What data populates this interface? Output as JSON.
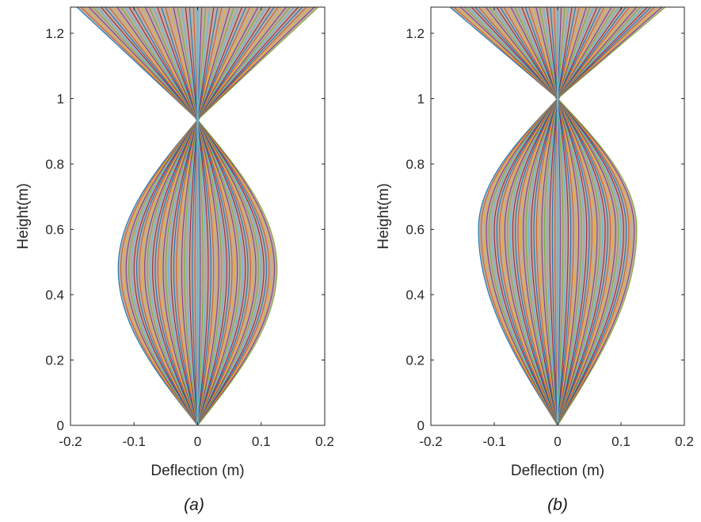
{
  "chart_data": [
    {
      "type": "line",
      "caption": "(a)",
      "xlabel": "Deflection (m)",
      "ylabel": "Height(m)",
      "xlim": [
        -0.2,
        0.2
      ],
      "ylim": [
        0,
        1.28
      ],
      "xticks": [
        "-0.2",
        "-0.1",
        "0",
        "0.1",
        "0.2"
      ],
      "yticks": [
        "0",
        "0.2",
        "0.4",
        "0.6",
        "0.8",
        "1",
        "1.2"
      ],
      "grid": false,
      "envelope": {
        "node_height": 0.935,
        "max_deflection_lower": 0.125,
        "max_deflection_lower_at_height": 0.48,
        "deflection_at_top": 0.19
      },
      "series_colors": [
        "#0072bd",
        "#d95319",
        "#edb120",
        "#7e2f8e",
        "#77ac30",
        "#4dbeee",
        "#a2142f"
      ],
      "num_mode_shape_lines": 60
    },
    {
      "type": "line",
      "caption": "(b)",
      "xlabel": "Deflection (m)",
      "ylabel": "Height(m)",
      "xlim": [
        -0.2,
        0.2
      ],
      "ylim": [
        0,
        1.28
      ],
      "xticks": [
        "-0.2",
        "-0.1",
        "0",
        "0.1",
        "0.2"
      ],
      "yticks": [
        "0",
        "0.2",
        "0.4",
        "0.6",
        "0.8",
        "1",
        "1.2"
      ],
      "grid": false,
      "envelope": {
        "node_height": 1.0,
        "max_deflection_lower": 0.125,
        "max_deflection_lower_at_height": 0.6,
        "deflection_at_top": 0.17
      },
      "series_colors": [
        "#0072bd",
        "#d95319",
        "#edb120",
        "#7e2f8e",
        "#77ac30",
        "#4dbeee",
        "#a2142f"
      ],
      "num_mode_shape_lines": 60
    }
  ]
}
